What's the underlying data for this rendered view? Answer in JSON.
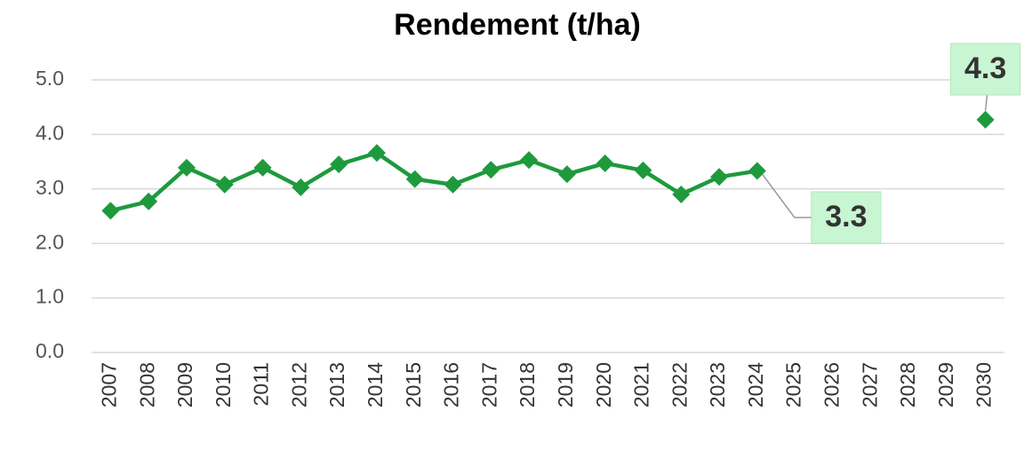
{
  "chart_data": {
    "type": "line",
    "title": "Rendement (t/ha)",
    "categories": [
      "2007",
      "2008",
      "2009",
      "2010",
      "2011",
      "2012",
      "2013",
      "2014",
      "2015",
      "2016",
      "2017",
      "2018",
      "2019",
      "2020",
      "2021",
      "2022",
      "2023",
      "2024",
      "2025",
      "2026",
      "2027",
      "2028",
      "2029",
      "2030"
    ],
    "series": [
      {
        "name": "Rendement",
        "color": "#1e9a3c",
        "values": [
          2.6,
          2.77,
          3.39,
          3.08,
          3.39,
          3.03,
          3.45,
          3.66,
          3.18,
          3.08,
          3.35,
          3.53,
          3.27,
          3.47,
          3.34,
          2.9,
          3.22,
          3.33,
          null,
          null,
          null,
          null,
          null,
          4.27
        ],
        "value_labels": [
          null,
          null,
          null,
          null,
          null,
          null,
          null,
          null,
          null,
          null,
          null,
          null,
          null,
          null,
          null,
          null,
          null,
          "3.3",
          null,
          null,
          null,
          null,
          null,
          "4.3"
        ]
      }
    ],
    "ylim": [
      0,
      5
    ],
    "yticks": [
      {
        "value": 0,
        "label": "0.0"
      },
      {
        "value": 1,
        "label": "1.0"
      },
      {
        "value": 2,
        "label": "2.0"
      },
      {
        "value": 3,
        "label": "3.0"
      },
      {
        "value": 4,
        "label": "4.0"
      },
      {
        "value": 5,
        "label": "5.0"
      }
    ],
    "grid": true
  }
}
